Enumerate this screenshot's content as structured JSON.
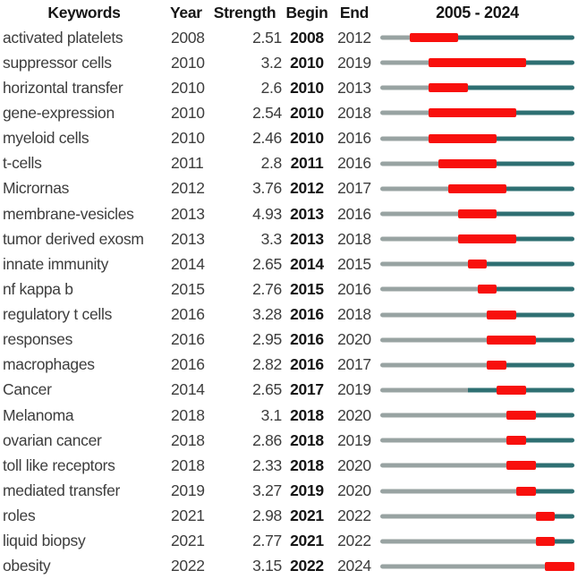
{
  "header": {
    "keywords": "Keywords",
    "year": "Year",
    "strength": "Strength",
    "begin": "Begin",
    "end": "End",
    "timeline_title": "2005 - 2024"
  },
  "colors": {
    "pre_segment": "#98a3a2",
    "active_segment": "#2e6f72",
    "burst_segment": "#f8100d",
    "text": "#3d3d3d",
    "text_bold": "#161616"
  },
  "chart_data": {
    "type": "table",
    "title": "2005 - 2024",
    "columns": [
      "Keywords",
      "Year",
      "Strength",
      "Begin",
      "End"
    ],
    "timeline": {
      "start_year": 2005,
      "end_year": 2024
    },
    "legend": {
      "pre_segment": "years before keyword appears (gray)",
      "active_segment": "keyword active, no burst (teal)",
      "burst_segment": "citation burst period (red)"
    },
    "rows": [
      {
        "keyword": "activated platelets",
        "year": 2008,
        "strength": "2.51",
        "begin": 2008,
        "end": 2012
      },
      {
        "keyword": "suppressor cells",
        "year": 2010,
        "strength": "3.2",
        "begin": 2010,
        "end": 2019
      },
      {
        "keyword": "horizontal transfer",
        "year": 2010,
        "strength": "2.6",
        "begin": 2010,
        "end": 2013
      },
      {
        "keyword": "gene-expression",
        "year": 2010,
        "strength": "2.54",
        "begin": 2010,
        "end": 2018
      },
      {
        "keyword": "myeloid cells",
        "year": 2010,
        "strength": "2.46",
        "begin": 2010,
        "end": 2016
      },
      {
        "keyword": "t-cells",
        "year": 2011,
        "strength": "2.8",
        "begin": 2011,
        "end": 2016
      },
      {
        "keyword": "Micrornas",
        "year": 2012,
        "strength": "3.76",
        "begin": 2012,
        "end": 2017
      },
      {
        "keyword": "membrane-vesicles",
        "year": 2013,
        "strength": "4.93",
        "begin": 2013,
        "end": 2016
      },
      {
        "keyword": "tumor derived exosm",
        "year": 2013,
        "strength": "3.3",
        "begin": 2013,
        "end": 2018
      },
      {
        "keyword": "innate immunity",
        "year": 2014,
        "strength": "2.65",
        "begin": 2014,
        "end": 2015
      },
      {
        "keyword": "nf kappa b",
        "year": 2015,
        "strength": "2.76",
        "begin": 2015,
        "end": 2016
      },
      {
        "keyword": "regulatory t cells",
        "year": 2016,
        "strength": "3.28",
        "begin": 2016,
        "end": 2018
      },
      {
        "keyword": "responses",
        "year": 2016,
        "strength": "2.95",
        "begin": 2016,
        "end": 2020
      },
      {
        "keyword": "macrophages",
        "year": 2016,
        "strength": "2.82",
        "begin": 2016,
        "end": 2017
      },
      {
        "keyword": "Cancer",
        "year": 2014,
        "strength": "2.65",
        "begin": 2017,
        "end": 2019
      },
      {
        "keyword": "Melanoma",
        "year": 2018,
        "strength": "3.1",
        "begin": 2018,
        "end": 2020
      },
      {
        "keyword": "ovarian cancer",
        "year": 2018,
        "strength": "2.86",
        "begin": 2018,
        "end": 2019
      },
      {
        "keyword": "toll like receptors",
        "year": 2018,
        "strength": "2.33",
        "begin": 2018,
        "end": 2020
      },
      {
        "keyword": "mediated transfer",
        "year": 2019,
        "strength": "3.27",
        "begin": 2019,
        "end": 2020
      },
      {
        "keyword": "roles",
        "year": 2021,
        "strength": "2.98",
        "begin": 2021,
        "end": 2022
      },
      {
        "keyword": "liquid biopsy",
        "year": 2021,
        "strength": "2.77",
        "begin": 2021,
        "end": 2022
      },
      {
        "keyword": "obesity",
        "year": 2022,
        "strength": "3.15",
        "begin": 2022,
        "end": 2024
      }
    ]
  }
}
